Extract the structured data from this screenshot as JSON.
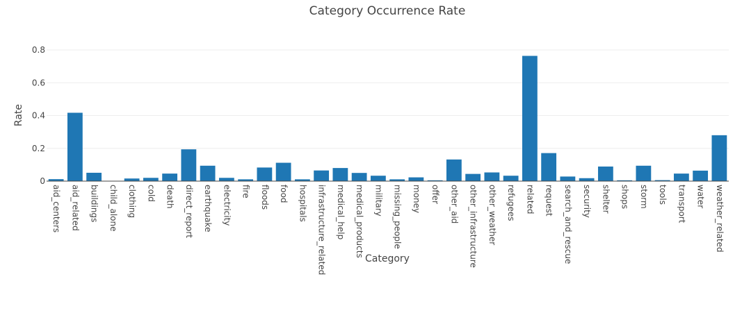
{
  "chart_data": {
    "type": "bar",
    "title": "Category Occurrence Rate",
    "xlabel": "Category",
    "ylabel": "Rate",
    "ylim": [
      0,
      0.8
    ],
    "y_ticks": [
      0,
      0.2,
      0.4,
      0.6,
      0.8
    ],
    "y_tick_labels": [
      "0",
      "0.2",
      "0.4",
      "0.6",
      "0.8"
    ],
    "grid": true,
    "legend": "none",
    "bar_color": "#1f77b4",
    "categories": [
      "aid_centers",
      "aid_related",
      "buildings",
      "child_alone",
      "clothing",
      "cold",
      "death",
      "direct_report",
      "earthquake",
      "electricity",
      "fire",
      "floods",
      "food",
      "hospitals",
      "infrastructure_related",
      "medical_help",
      "medical_products",
      "military",
      "missing_people",
      "money",
      "offer",
      "other_aid",
      "other_infrastructure",
      "other_weather",
      "refugees",
      "related",
      "request",
      "search_and_rescue",
      "security",
      "shelter",
      "shops",
      "storm",
      "tools",
      "transport",
      "water",
      "weather_related"
    ],
    "values": [
      0.012,
      0.417,
      0.051,
      0.0,
      0.016,
      0.02,
      0.046,
      0.194,
      0.094,
      0.02,
      0.011,
      0.083,
      0.112,
      0.011,
      0.065,
      0.08,
      0.05,
      0.033,
      0.011,
      0.023,
      0.005,
      0.132,
      0.044,
      0.053,
      0.033,
      0.764,
      0.171,
      0.028,
      0.018,
      0.089,
      0.005,
      0.094,
      0.006,
      0.046,
      0.064,
      0.28
    ]
  }
}
